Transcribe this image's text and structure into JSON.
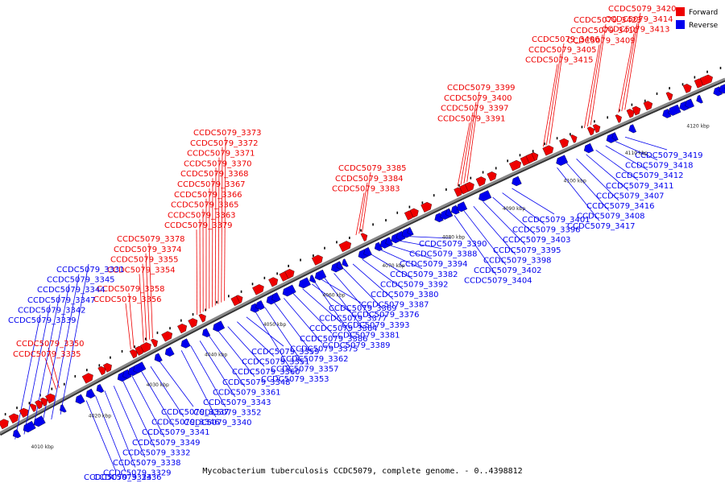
{
  "caption": "Mycobacterium tuberculosis CCDC5079, complete genome. - 0..4398812",
  "legend": [
    {
      "label": "Forward",
      "color": "#ee0000"
    },
    {
      "label": "Reverse",
      "color": "#0000ee"
    }
  ],
  "colors": {
    "forward": "#ee0000",
    "reverse": "#0000ee",
    "backbone": "#888888"
  },
  "kbp_labels": [
    "4010 kbp",
    "4020 kbp",
    "4030 kbp",
    "4040 kbp",
    "4050 kbp",
    "4060 kbp",
    "4070 kbp",
    "4080 kbp",
    "4090 kbp",
    "4100 kbp",
    "4110 kbp",
    "4120 kbp"
  ],
  "forward_labels": [
    "CCDC5079_3420",
    "CCDC5079_3414",
    "CCDC5079_3413",
    "CCDC5079_3423",
    "CCDC5079_3410",
    "CCDC5079_3409",
    "CCDC5079_3406",
    "CCDC5079_3405",
    "CCDC5079_3415",
    "CCDC5079_3399",
    "CCDC5079_3400",
    "CCDC5079_3397",
    "CCDC5079_3391",
    "CCDC5079_3385",
    "CCDC5079_3384",
    "CCDC5079_3383",
    "CCDC5079_3373",
    "CCDC5079_3372",
    "CCDC5079_3371",
    "CCDC5079_3370",
    "CCDC5079_3368",
    "CCDC5079_3367",
    "CCDC5079_3366",
    "CCDC5079_3365",
    "CCDC5079_3363",
    "CCDC5079_3379",
    "CCDC5079_3378",
    "CCDC5079_3374",
    "CCDC5079_3355",
    "CCDC5079_3354",
    "CCDC5079_3358",
    "CCDC5079_3356",
    "CCDC5079_3350",
    "CCDC5079_3335"
  ],
  "reverse_labels": [
    "CCDC5079_3419",
    "CCDC5079_3418",
    "CCDC5079_3412",
    "CCDC5079_3411",
    "CCDC5079_3407",
    "CCDC5079_3416",
    "CCDC5079_3408",
    "CCDC5079_3417",
    "CCDC5079_3401",
    "CCDC5079_3396",
    "CCDC5079_3403",
    "CCDC5079_3395",
    "CCDC5079_3398",
    "CCDC5079_3402",
    "CCDC5079_3404",
    "CCDC5079_3390",
    "CCDC5079_3388",
    "CCDC5079_3394",
    "CCDC5079_3382",
    "CCDC5079_3392",
    "CCDC5079_3380",
    "CCDC5079_3387",
    "CCDC5079_3376",
    "CCDC5079_3393",
    "CCDC5079_3381",
    "CCDC5079_3389",
    "CCDC5079_3369",
    "CCDC5079_3377",
    "CCDC5079_3364",
    "CCDC5079_3386",
    "CCDC5079_3375",
    "CCDC5079_3362",
    "CCDC5079_3357",
    "CCDC5079_3353",
    "CCDC5079_3359",
    "CCDC5079_3351",
    "CCDC5079_3360",
    "CCDC5079_3348",
    "CCDC5079_3361",
    "CCDC5079_3343",
    "CCDC5079_3352",
    "CCDC5079_3340",
    "CCDC5079_3337",
    "CCDC5079_3346",
    "CCDC5079_3341",
    "CCDC5079_3349",
    "CCDC5079_3332",
    "CCDC5079_3338",
    "CCDC5079_3329",
    "CCDC5079_3336",
    "CCDC5079_3324",
    "CCDC5079_3331",
    "CCDC5079_3345",
    "CCDC5079_3344",
    "CCDC5079_3347",
    "CCDC5079_3342",
    "CCDC5079_3339"
  ]
}
